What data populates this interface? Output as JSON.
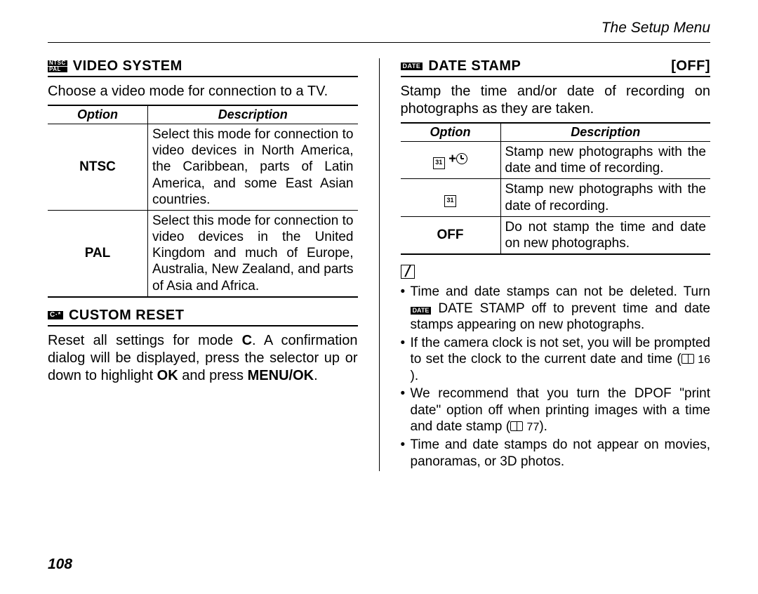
{
  "header": {
    "title": "The Setup Menu"
  },
  "footer": {
    "page": "108"
  },
  "left": {
    "video": {
      "icon_top": "NTSC",
      "icon_bottom": "PAL",
      "heading": "VIDEO SYSTEM",
      "intro": "Choose a video mode for connection to a TV.",
      "th_option": "Option",
      "th_desc": "Description",
      "rows": [
        {
          "opt": "NTSC",
          "desc": "Select this mode for connection to video devices in North America, the Caribbean, parts of Latin America, and some East Asian countries."
        },
        {
          "opt": "PAL",
          "desc": "Select this mode for connection to video devices in the United Kingdom and much of Europe, Australia, New Zealand, and parts of Asia and Africa."
        }
      ]
    },
    "reset": {
      "icon": "C·*",
      "heading": "CUSTOM RESET",
      "text_pre": "Reset all settings for mode ",
      "mode": "C",
      "text_mid": ". A confirmation dialog will be displayed, press the selector up or down to highlight ",
      "ok": "OK",
      "text_mid2": " and press ",
      "menuok": "MENU/OK",
      "text_end": "."
    }
  },
  "right": {
    "date": {
      "icon": "DATE",
      "heading": "DATE STAMP",
      "status": "[OFF]",
      "intro": "Stamp the time and/or date of recording on photographs as they are taken.",
      "th_option": "Option",
      "th_desc": "Description",
      "rows": [
        {
          "icon": "cal+clock",
          "cal_num": "31",
          "desc": "Stamp new photographs with the date and time of recording."
        },
        {
          "icon": "cal",
          "cal_num": "31",
          "desc": "Stamp new photographs with the date of recording."
        },
        {
          "opt": "OFF",
          "desc": "Do not stamp the time and date on new photographs."
        }
      ],
      "notes": [
        {
          "pre": "Time and date stamps can not be deleted. Turn ",
          "icon": "DATE",
          "bold": " DATE STAMP",
          "post": " off to prevent time and date stamps appearing on new photographs."
        },
        {
          "plain_pre": "If the camera clock is not set, you will be prompted to set the clock to the current date and time (",
          "ref": "16",
          "plain_post": ")."
        },
        {
          "plain_pre": "We recommend that you turn the DPOF \"print date\" option off when printing images with a time and date stamp (",
          "ref": "77",
          "plain_post": ")."
        },
        {
          "plain": "Time and date stamps do not appear on movies, panoramas, or 3D photos."
        }
      ]
    }
  }
}
